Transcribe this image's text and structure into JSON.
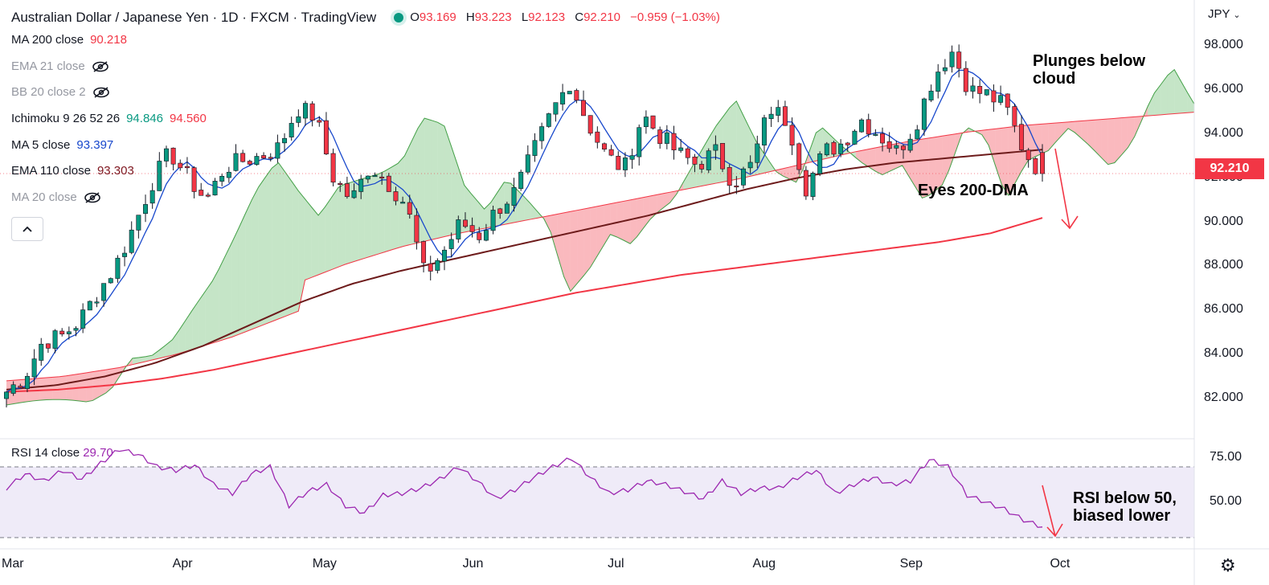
{
  "header": {
    "symbol": "Australian Dollar / Japanese Yen · 1D · FXCM · TradingView",
    "ohlc": {
      "o_label": "O",
      "o": "93.169",
      "h_label": "H",
      "h": "93.223",
      "l_label": "L",
      "l": "92.123",
      "c_label": "C",
      "c": "92.210",
      "change": "−0.959 (−1.03%)"
    },
    "status_color": "#089981"
  },
  "indicators": [
    {
      "name": "MA 200 close",
      "value": "90.218",
      "value_color": "#f23645",
      "hidden": false
    },
    {
      "name": "EMA 21 close",
      "value": "",
      "hidden": true
    },
    {
      "name": "BB 20 close 2",
      "value": "",
      "hidden": true
    },
    {
      "name": "Ichimoku 9 26 52 26",
      "value": "94.846",
      "value2": "94.560",
      "hidden": false
    },
    {
      "name": "MA 5 close",
      "value": "93.397",
      "value_color": "#1848cc",
      "hidden": false
    },
    {
      "name": "EMA 110 close",
      "value": "93.303",
      "value_color": "#801922",
      "hidden": false
    },
    {
      "name": "MA 20 close",
      "value": "",
      "hidden": true
    }
  ],
  "rsi": {
    "label": "RSI 14 close",
    "value": "29.70",
    "color": "#9c27b0",
    "levels": [
      "75.00",
      "50.00"
    ]
  },
  "price_axis": {
    "currency": "JPY",
    "ticks": [
      "98.000",
      "96.000",
      "94.000",
      "92.000",
      "90.000",
      "88.000",
      "86.000",
      "84.000",
      "82.000"
    ],
    "last_price": "92.210"
  },
  "time_axis": {
    "ticks": [
      "Mar",
      "Apr",
      "May",
      "Jun",
      "Jul",
      "Aug",
      "Sep",
      "Oct"
    ]
  },
  "annotations": {
    "plunge": "Plunges below cloud",
    "plunge_l1": "Plunges below",
    "plunge_l2": "cloud",
    "dma": "Eyes 200-DMA",
    "rsi_l1": "RSI below 50,",
    "rsi_l2": "biased lower"
  },
  "colors": {
    "up": "#089981",
    "down": "#f23645",
    "ma200": "#f23645",
    "ema110": "#6d1b1b",
    "ma5": "#1848cc",
    "cloud_bull": "#4caf50",
    "cloud_bear": "#f23645",
    "rsi_band": "#7e57c2"
  },
  "chart_data": {
    "type": "candlestick",
    "ylim": [
      81.3,
      99.0
    ],
    "rsi_ylim": [
      25,
      85
    ],
    "candles_start": "2021-02-26",
    "close_path": [
      82.3,
      83.0,
      84.6,
      84.8,
      85.5,
      86.8,
      88.0,
      89.8,
      91.8,
      93.2,
      92.0,
      91.0,
      92.5,
      92.8,
      93.0,
      93.4,
      95.2,
      94.8,
      92.0,
      91.0,
      92.6,
      91.8,
      90.8,
      87.6,
      88.6,
      90.0,
      89.4,
      90.6,
      91.4,
      93.2,
      95.0,
      96.4,
      94.5,
      93.0,
      92.4,
      94.9,
      93.9,
      93.1,
      92.6,
      93.2,
      91.8,
      92.6,
      95.2,
      94.6,
      91.6,
      93.2,
      93.6,
      94.7,
      94.0,
      93.2,
      94.4,
      96.6,
      97.8,
      96.0,
      95.8,
      95.2,
      93.2,
      92.2
    ],
    "ma200_path": [
      82.3,
      82.4,
      82.6,
      82.9,
      83.3,
      83.8,
      84.3,
      84.8,
      85.3,
      85.8,
      86.3,
      86.8,
      87.2,
      87.6,
      87.9,
      88.2,
      88.5,
      88.8,
      89.1,
      89.5,
      90.2
    ],
    "ema110_path": [
      82.4,
      82.6,
      83.0,
      83.6,
      84.4,
      85.4,
      86.4,
      87.2,
      87.8,
      88.3,
      88.8,
      89.3,
      89.8,
      90.3,
      90.9,
      91.5,
      92.0,
      92.4,
      92.7,
      92.9,
      93.1,
      93.3
    ],
    "rsi_path": [
      58,
      66,
      62,
      68,
      63,
      72,
      80,
      77,
      70,
      68,
      71,
      60,
      55,
      66,
      70,
      48,
      56,
      60,
      48,
      44,
      54,
      55,
      58,
      63,
      70,
      62,
      52,
      57,
      64,
      70,
      75,
      64,
      55,
      57,
      62,
      60,
      56,
      52,
      62,
      55,
      58,
      58,
      64,
      68,
      55,
      60,
      64,
      60,
      62,
      74,
      70,
      54,
      50,
      46,
      40,
      36
    ]
  }
}
